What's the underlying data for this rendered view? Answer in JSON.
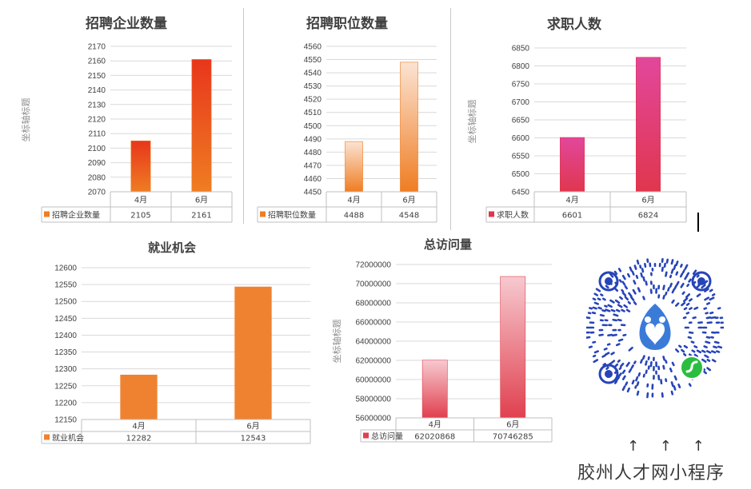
{
  "chart_data": [
    {
      "id": "companies",
      "type": "bar",
      "title": "招聘企业数量",
      "ylabel": "坐标轴标题",
      "categories": [
        "4月",
        "6月"
      ],
      "series": [
        {
          "name": "招聘企业数量",
          "values": [
            2105,
            2161
          ],
          "color": "#e8361c",
          "color2": "#ef7d22"
        }
      ],
      "ylim": [
        2070,
        2170
      ],
      "yticks": [
        2070,
        2080,
        2090,
        2100,
        2110,
        2120,
        2130,
        2140,
        2150,
        2160,
        2170
      ],
      "ytick_labels": [
        "2070",
        "2080",
        "2090",
        "2100",
        "2110",
        "2120",
        "2130",
        "2140",
        "2150",
        "2160",
        "2170"
      ],
      "table_values": [
        "2105",
        "2161"
      ],
      "grid": true
    },
    {
      "id": "positions",
      "type": "bar",
      "title": "招聘职位数量",
      "ylabel": "",
      "categories": [
        "4月",
        "6月"
      ],
      "series": [
        {
          "name": "招聘职位数量",
          "values": [
            4488,
            4548
          ],
          "color": "#fbe3d3",
          "color2": "#ef7d22"
        }
      ],
      "ylim": [
        4450,
        4560
      ],
      "yticks": [
        4450,
        4460,
        4470,
        4480,
        4490,
        4500,
        4510,
        4520,
        4530,
        4540,
        4550,
        4560
      ],
      "ytick_labels": [
        "4450",
        "4460",
        "4470",
        "4480",
        "4490",
        "4500",
        "4510",
        "4520",
        "4530",
        "4540",
        "4550",
        "4560"
      ],
      "table_values": [
        "4488",
        "4548"
      ],
      "grid": true
    },
    {
      "id": "seekers",
      "type": "bar",
      "title": "求职人数",
      "ylabel": "坐标轴标题",
      "categories": [
        "4月",
        "6月"
      ],
      "series": [
        {
          "name": "求职人数",
          "values": [
            6601,
            6824
          ],
          "color": "#e2479c",
          "color2": "#e0364e"
        }
      ],
      "ylim": [
        6450,
        6850
      ],
      "yticks": [
        6450,
        6500,
        6550,
        6600,
        6650,
        6700,
        6750,
        6800,
        6850
      ],
      "ytick_labels": [
        "6450",
        "6500",
        "6550",
        "6600",
        "6650",
        "6700",
        "6750",
        "6800",
        "6850"
      ],
      "table_values": [
        "6601",
        "6824"
      ],
      "grid": true
    },
    {
      "id": "jobs",
      "type": "bar",
      "title": "就业机会",
      "ylabel": "",
      "categories": [
        "4月",
        "6月"
      ],
      "series": [
        {
          "name": "就业机会",
          "values": [
            12282,
            12543
          ],
          "color": "#ef8230",
          "color2": "#ef8230"
        }
      ],
      "ylim": [
        12150,
        12600
      ],
      "yticks": [
        12150,
        12200,
        12250,
        12300,
        12350,
        12400,
        12450,
        12500,
        12550,
        12600
      ],
      "ytick_labels": [
        "12150",
        "12200",
        "12250",
        "12300",
        "12350",
        "12400",
        "12450",
        "12500",
        "12550",
        "12600"
      ],
      "table_values": [
        "12282",
        "12543"
      ],
      "grid": true
    },
    {
      "id": "visits",
      "type": "bar",
      "title": "总访问量",
      "ylabel": "坐标轴标题",
      "categories": [
        "4月",
        "6月"
      ],
      "series": [
        {
          "name": "总访问量",
          "values": [
            62020868,
            70746285
          ],
          "color": "#f7c9cf",
          "color2": "#e0404f"
        }
      ],
      "ylim": [
        56000000,
        72000000
      ],
      "yticks": [
        56000000,
        58000000,
        60000000,
        62000000,
        64000000,
        66000000,
        68000000,
        70000000,
        72000000
      ],
      "ytick_labels": [
        "56000000",
        "58000000",
        "60000000",
        "62000000",
        "64000000",
        "66000000",
        "68000000",
        "70000000",
        "72000000"
      ],
      "table_values": [
        "62020868",
        "70746285"
      ],
      "grid": true
    }
  ],
  "qr": {
    "caption": "胶州人才网小程序",
    "arrows": "↑ ↑ ↑",
    "icon": "wechat-mini-program-qr-code"
  }
}
